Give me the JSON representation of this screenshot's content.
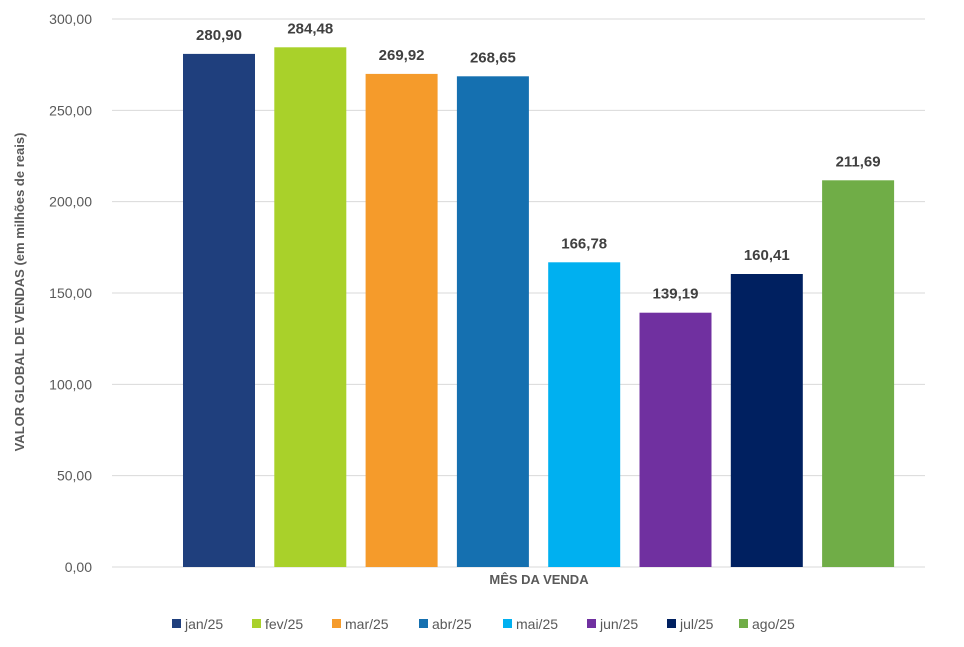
{
  "chart_data": {
    "type": "bar",
    "categories": [
      "jan/25",
      "fev/25",
      "mar/25",
      "abr/25",
      "mai/25",
      "jun/25",
      "jul/25",
      "ago/25"
    ],
    "values": [
      280.9,
      284.48,
      269.92,
      268.65,
      166.78,
      139.19,
      160.41,
      211.69
    ],
    "data_labels": [
      "280,90",
      "284,48",
      "269,92",
      "268,65",
      "166,78",
      "139,19",
      "160,41",
      "211,69"
    ],
    "colors": [
      "#1f3f7d",
      "#a9d12a",
      "#f59b2b",
      "#1570b0",
      "#00b0f0",
      "#7030a0",
      "#002060",
      "#70ad47"
    ],
    "title": "",
    "xlabel": "MÊS DA VENDA",
    "ylabel": "VALOR GLOBAL DE VENDAS (em milhões de reais)",
    "ylim": [
      0,
      300
    ],
    "yticks": [
      0,
      50,
      100,
      150,
      200,
      250,
      300
    ],
    "ytick_labels": [
      "0,00",
      "50,00",
      "100,00",
      "150,00",
      "200,00",
      "250,00",
      "300,00"
    ],
    "legend": [
      "jan/25",
      "fev/25",
      "mar/25",
      "abr/25",
      "mai/25",
      "jun/25",
      "jul/25",
      "ago/25"
    ],
    "legend_position": "bottom",
    "grid": true
  }
}
